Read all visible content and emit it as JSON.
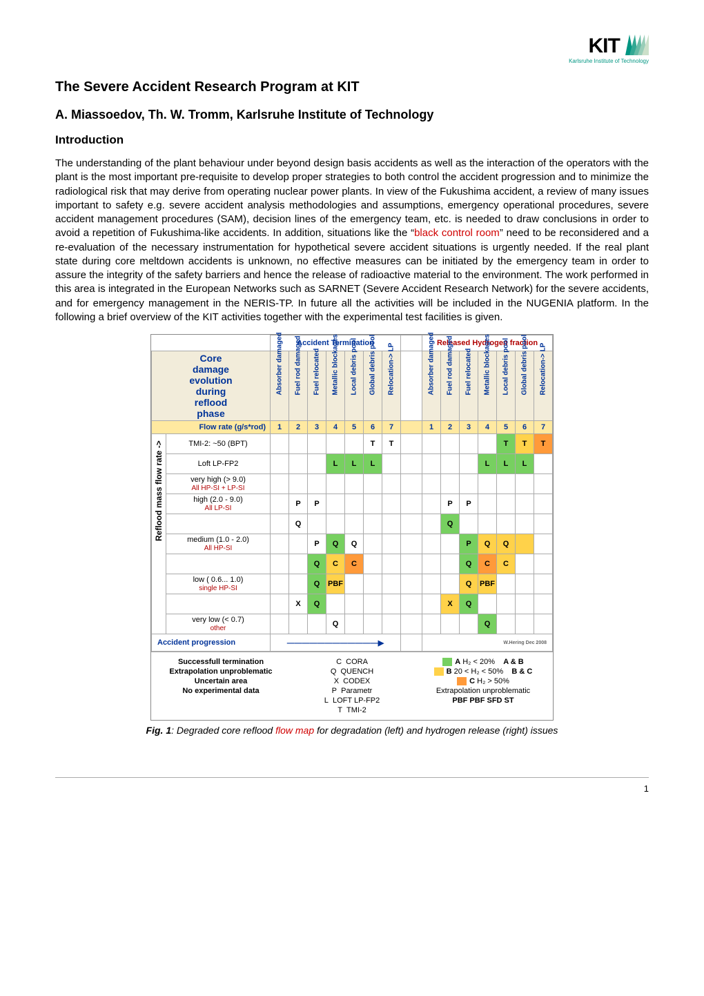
{
  "logo": {
    "text": "KIT",
    "subtitle": "Karlsruhe Institute of Technology",
    "fan_colors": [
      "#009682",
      "#33a893",
      "#66bba5",
      "#99cdb8",
      "#cce0ca"
    ]
  },
  "title": "The Severe Accident Research Program at KIT",
  "authors": "A. Miassoedov, Th. W. Tromm, Karlsruhe Institute of Technology",
  "section1": "Introduction",
  "body_part1": "The understanding of the plant behaviour under beyond design basis accidents as well as the interaction of the operators with the plant is the most important pre-requisite to develop proper strategies to both control the accident progression and to minimize the radiological risk that may derive from operating nuclear power plants. In view of the Fukushima accident, a review of many issues important to safety e.g. severe accident analysis methodologies and assumptions, emergency operational procedures, severe accident management procedures (SAM), decision lines of the emergency team, etc. is needed to draw conclusions in order to avoid a repetition of Fukushima-like accidents. In addition, situations like the “",
  "body_red1": "black control room",
  "body_part2": "” need to be reconsidered and a re-evaluation of the necessary instrumentation for hypothetical severe accident situations is urgently needed. If the real plant state during core meltdown accidents is unknown, no effective measures can be initiated by the emergency team in order to assure the integrity of the safety barriers and hence the release of radioactive material to the environment. The work performed in this area is integrated in the European Networks such as SARNET (Severe Accident Research Network) for the severe accidents, and for emergency management in the NERIS-TP. In future all the activities will be included in the NUGENIA platform. In the following a brief overview of the KIT activities together with the experimental test facilities is given.",
  "figure": {
    "caption_bold": "Fig. 1",
    "caption_plain1": ": Degraded core reflood ",
    "caption_red": "flow map",
    "caption_plain2": " for degradation (left) and hydrogen release (right) issues",
    "header_left": "Accident Termination",
    "header_right": "Released Hydrogen fraction",
    "big_head": "Core damage evolution during reflood phase",
    "vcols": [
      "Absorber damaged",
      "Fuel rod damaged",
      "Fuel relocated",
      "Metallic blockages",
      "Local debris pool",
      "Global debris pool",
      "Relocation-> LP"
    ],
    "flow_rate_label": "Flow rate (g/s*rod)",
    "nums": [
      "1",
      "2",
      "3",
      "4",
      "5",
      "6",
      "7"
    ],
    "yaxis": "Reflood mass flow rate ->",
    "accident_prog": "Accident progression",
    "corner_note": "W.Hering Dec 2008",
    "rows": [
      {
        "label": "TMI-2: ~50 (BPT)",
        "sub": "",
        "left": [
          "",
          "",
          "",
          "",
          "",
          "T",
          "T"
        ],
        "lcls": [
          "",
          "",
          "",
          "",
          "",
          "",
          ""
        ],
        "right": [
          "",
          "",
          "",
          "",
          "T",
          "T",
          "T"
        ],
        "rcls": [
          "",
          "",
          "",
          "",
          "gA",
          "gB",
          "gC"
        ]
      },
      {
        "label": "Loft LP-FP2",
        "sub": "",
        "left": [
          "",
          "",
          "",
          "L",
          "L",
          "L",
          ""
        ],
        "lcls": [
          "",
          "",
          "",
          "gA",
          "gA",
          "gA",
          ""
        ],
        "right": [
          "",
          "",
          "",
          "L",
          "L",
          "L",
          ""
        ],
        "rcls": [
          "",
          "",
          "",
          "gA",
          "gA",
          "gA",
          ""
        ]
      },
      {
        "label": "very high (> 9.0)",
        "sub": "All HP-SI + LP-SI",
        "left": [
          "",
          "",
          "",
          "",
          "",
          "",
          ""
        ],
        "lcls": [
          "",
          "",
          "",
          "",
          "",
          "",
          ""
        ],
        "right": [
          "",
          "",
          "",
          "",
          "",
          "",
          ""
        ],
        "rcls": [
          "",
          "",
          "",
          "",
          "",
          "",
          ""
        ]
      },
      {
        "label": "high (2.0 - 9.0)",
        "sub": "All LP-SI",
        "left": [
          "",
          "P",
          "P",
          "",
          "",
          "",
          ""
        ],
        "lcls": [
          "",
          "",
          "",
          "",
          "",
          "",
          ""
        ],
        "right": [
          "",
          "P",
          "P",
          "",
          "",
          "",
          ""
        ],
        "rcls": [
          "",
          "",
          "",
          "",
          "",
          "",
          ""
        ]
      },
      {
        "label": "",
        "sub": "",
        "left": [
          "",
          "Q",
          "",
          "",
          "",
          "",
          ""
        ],
        "lcls": [
          "",
          "",
          "",
          "",
          "",
          "",
          ""
        ],
        "right": [
          "",
          "Q",
          "",
          "",
          "",
          "",
          ""
        ],
        "rcls": [
          "",
          "gA",
          "",
          "",
          "",
          "",
          ""
        ]
      },
      {
        "label": "medium (1.0 - 2.0)",
        "sub": "All HP-SI",
        "left": [
          "",
          "",
          "P",
          "Q",
          "Q",
          "",
          ""
        ],
        "lcls": [
          "",
          "",
          "",
          "gA",
          "",
          " ",
          ""
        ],
        "right": [
          "",
          "",
          "P",
          "Q",
          "Q",
          "",
          ""
        ],
        "rcls": [
          "",
          "",
          "gA",
          "gB",
          "gB",
          "gB",
          ""
        ]
      },
      {
        "label": "",
        "sub": "",
        "left": [
          "",
          "",
          "Q",
          "C",
          "C",
          "",
          ""
        ],
        "lcls": [
          "",
          "",
          "gA",
          "gB",
          "gC",
          "",
          ""
        ],
        "right": [
          "",
          "",
          "Q",
          "C",
          "C",
          "",
          ""
        ],
        "rcls": [
          "",
          "",
          "gA",
          "gC",
          "gB",
          "",
          ""
        ]
      },
      {
        "label": "low ( 0.6... 1.0)",
        "sub": "single HP-SI",
        "left": [
          "",
          "",
          "Q",
          "PBF",
          "",
          "",
          ""
        ],
        "lcls": [
          "",
          "",
          "gA",
          "gB",
          "",
          "",
          ""
        ],
        "right": [
          "",
          "",
          "Q",
          "PBF",
          "",
          "",
          ""
        ],
        "rcls": [
          "",
          "",
          "gB",
          "gB",
          "",
          "",
          ""
        ]
      },
      {
        "label": "",
        "sub": "",
        "left": [
          "",
          "X",
          "Q",
          "",
          "",
          "",
          ""
        ],
        "lcls": [
          "",
          "",
          "gA",
          "",
          "",
          "",
          ""
        ],
        "right": [
          "",
          "X",
          "Q",
          "",
          "",
          "",
          ""
        ],
        "rcls": [
          "",
          "gB",
          "gA",
          "",
          "",
          "",
          ""
        ]
      },
      {
        "label": "very low (< 0.7)",
        "sub": "other",
        "left": [
          "",
          "",
          "",
          "Q",
          "",
          "",
          ""
        ],
        "lcls": [
          "",
          "",
          "",
          "",
          "",
          "",
          ""
        ],
        "right": [
          "",
          "",
          "",
          "Q",
          "",
          "",
          ""
        ],
        "rcls": [
          "",
          "",
          "",
          "gA",
          "",
          "",
          ""
        ]
      }
    ],
    "legend_left": [
      "Successfull termination",
      "Extrapolation unproblematic",
      "Uncertain area",
      "No experimental data"
    ],
    "legend_mid": [
      {
        "k": "C",
        "v": "CORA"
      },
      {
        "k": "Q",
        "v": "QUENCH"
      },
      {
        "k": "X",
        "v": "CODEX"
      },
      {
        "k": "P",
        "v": "Parametr"
      },
      {
        "k": "L",
        "v": "LOFT LP-FP2"
      },
      {
        "k": "T",
        "v": "TMI-2"
      }
    ],
    "legend_right": [
      {
        "sw": "gA",
        "t": "H₂ < 20%",
        "r": "A & B"
      },
      {
        "sw": "gB",
        "t": "20 < H₂ < 50%",
        "r": "B & C"
      },
      {
        "sw": "gC",
        "t": "H₂ > 50%",
        "r": ""
      },
      {
        "sw": "",
        "t": "Extrapolation unproblematic",
        "r": ""
      }
    ],
    "legend_abc": [
      "A",
      "B",
      "C"
    ],
    "legend_pbf": "PBF PBF SFD ST"
  },
  "page_number": "1"
}
